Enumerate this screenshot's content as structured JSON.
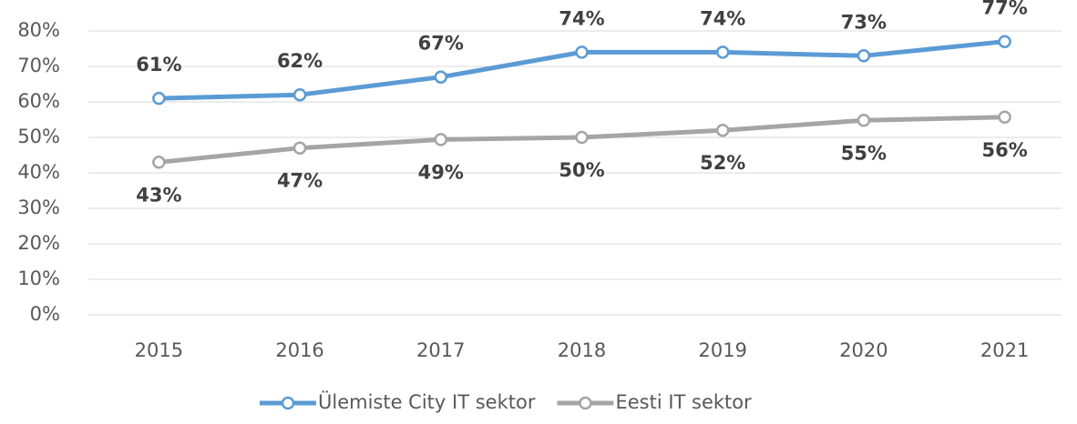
{
  "chart_data": {
    "type": "line",
    "categories": [
      "2015",
      "2016",
      "2017",
      "2018",
      "2019",
      "2020",
      "2021"
    ],
    "series": [
      {
        "name": "Ülemiste City IT sektor",
        "color": "#5b9bd5",
        "values": [
          61,
          62,
          67,
          74,
          74,
          73,
          77
        ],
        "value_labels": [
          "61%",
          "62%",
          "67%",
          "74%",
          "74%",
          "73%",
          "77%"
        ]
      },
      {
        "name": "Eesti IT sektor",
        "color": "#a5a5a5",
        "values": [
          43,
          47,
          49.4,
          50,
          52,
          54.8,
          55.7
        ],
        "value_labels": [
          "43%",
          "47%",
          "49%",
          "50%",
          "52%",
          "55%",
          "56%"
        ]
      }
    ],
    "ylim": [
      0,
      80
    ],
    "yticks": [
      {
        "value": 0,
        "label": "0%"
      },
      {
        "value": 10,
        "label": "10%"
      },
      {
        "value": 20,
        "label": "20%"
      },
      {
        "value": 30,
        "label": "30%"
      },
      {
        "value": 40,
        "label": "40%"
      },
      {
        "value": 50,
        "label": "50%"
      },
      {
        "value": 60,
        "label": "60%"
      },
      {
        "value": 70,
        "label": "70%"
      },
      {
        "value": 80,
        "label": "80%"
      }
    ],
    "grid": true,
    "legend": "bottom"
  }
}
